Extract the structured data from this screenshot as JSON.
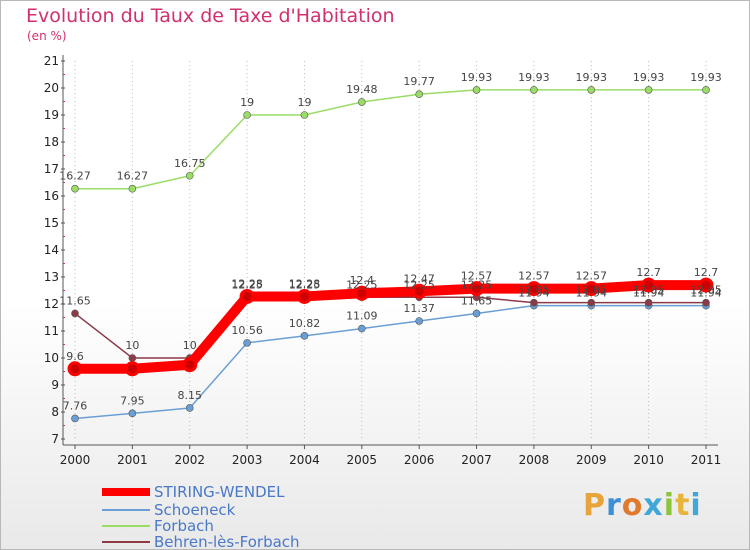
{
  "page": {
    "title": "Evolution du Taux de Taxe d'Habitation",
    "subtitle": "(en %)"
  },
  "branding": {
    "logo_text": "Proxiti"
  },
  "colors": {
    "STIRING-WENDEL": "#ff0000",
    "Schoeneck": "#6a9fd6",
    "Forbach": "#99dd66",
    "Behren-lès-Forbach": "#8b3a46"
  },
  "chart_data": {
    "type": "line",
    "title": "Evolution du Taux de Taxe d'Habitation",
    "ylabel": "(en %)",
    "x": [
      "2000",
      "2001",
      "2002",
      "2003",
      "2004",
      "2005",
      "2006",
      "2007",
      "2008",
      "2009",
      "2010",
      "2011"
    ],
    "ylim": [
      7,
      21
    ],
    "yticks": [
      "7",
      "8",
      "9",
      "10",
      "11",
      "12",
      "13",
      "14",
      "15",
      "16",
      "17",
      "18",
      "19",
      "20",
      "21"
    ],
    "grid": "vertical dotted",
    "legend_position": "bottom-left",
    "series": [
      {
        "name": "STIRING-WENDEL",
        "values": [
          9.6,
          9.6,
          9.75,
          12.28,
          12.28,
          12.4,
          12.47,
          12.57,
          12.57,
          12.57,
          12.7,
          12.7
        ],
        "labels": [
          "9.6",
          "",
          "",
          "12.28",
          "12.28",
          "12.4",
          "12.47",
          "12.57",
          "12.57",
          "12.57",
          "12.7",
          "12.7"
        ]
      },
      {
        "name": "Schoeneck",
        "values": [
          7.76,
          7.95,
          8.15,
          10.56,
          10.82,
          11.09,
          11.37,
          11.65,
          11.94,
          11.94,
          11.94,
          11.94
        ],
        "labels": [
          "7.76",
          "7.95",
          "8.15",
          "10.56",
          "10.82",
          "11.09",
          "11.37",
          "11.65",
          "11.94",
          "11.94",
          "11.94",
          "11.94"
        ]
      },
      {
        "name": "Forbach",
        "values": [
          16.27,
          16.27,
          16.75,
          19,
          19,
          19.48,
          19.77,
          19.93,
          19.93,
          19.93,
          19.93,
          19.93
        ],
        "labels": [
          "16.27",
          "16.27",
          "16.75",
          "19",
          "19",
          "19.48",
          "19.77",
          "19.93",
          "19.93",
          "19.93",
          "19.93",
          "19.93"
        ]
      },
      {
        "name": "Behren-lès-Forbach",
        "values": [
          11.65,
          10,
          10,
          12.25,
          12.25,
          12.25,
          12.25,
          12.25,
          12.05,
          12.05,
          12.05,
          12.05
        ],
        "labels": [
          "11.65",
          "10",
          "10",
          "12.25",
          "12.25",
          "12.25",
          "12.25",
          "12.25",
          "12.05",
          "12.05",
          "12.05",
          "12.05"
        ]
      }
    ]
  }
}
